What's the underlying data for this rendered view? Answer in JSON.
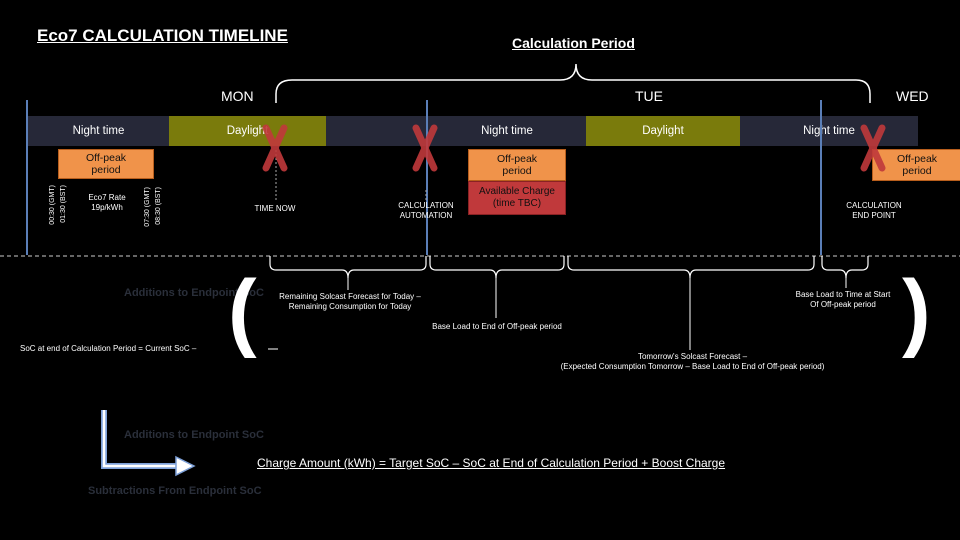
{
  "title": "Eco7 CALCULATION TIMELINE",
  "calc_period_title": "Calculation Period",
  "days": {
    "mon": "MON",
    "tue": "TUE",
    "wed": "WED"
  },
  "bands": {
    "night1": "Night time",
    "day1": "Daylight",
    "night2": "Night time",
    "day2": "Daylight",
    "night3": "Night time"
  },
  "offpeak": {
    "line1": "Off-peak",
    "line2": "period"
  },
  "available_charge": {
    "line1": "Available Charge",
    "line2": "(time TBC)"
  },
  "times": {
    "start_gmt": "00:30 (GMT)",
    "start_bst": "01:30 (BST)",
    "end_gmt": "07:30 (GMT)",
    "end_bst": "08:30 (BST)"
  },
  "eco7_rate": {
    "line1": "Eco7 Rate",
    "line2": "19p/kWh"
  },
  "markers": {
    "time_now": "TIME NOW",
    "calc_auto_1": "CALCULATION",
    "calc_auto_2": "AUTOMATION",
    "calc_end_1": "CALCULATION",
    "calc_end_2": "END POINT"
  },
  "annotations": {
    "solcast_today_1": "Remaining Solcast Forecast for Today –",
    "solcast_today_2": "Remaining Consumption for Today",
    "base_load_end": "Base Load to End of Off-peak period",
    "base_load_start_1": "Base Load to Time at Start",
    "base_load_start_2": "Of Off-peak period",
    "tomorrow_1": "Tomorrow's Solcast Forecast –",
    "tomorrow_2": "(Expected Consumption Tomorrow  – Base Load to End of Off-peak period)",
    "soc_end": "SoC at end of Calculation Period = Current SoC –"
  },
  "formula": "Charge Amount  (kWh)  = Target SoC – SoC at End of Calculation  Period + Boost Charge",
  "ghost": {
    "add1": "Additions to Endpoint SoC",
    "add2": "Additions to Endpoint SoC",
    "sub": "Subtractions From Endpoint SoC"
  },
  "colors": {
    "night": "#262838",
    "daylight": "#7a7b0c",
    "offpeak": "#f0934a",
    "available": "#c0393b",
    "marker_x": "#c0393b",
    "divider": "#5b7fb8"
  }
}
